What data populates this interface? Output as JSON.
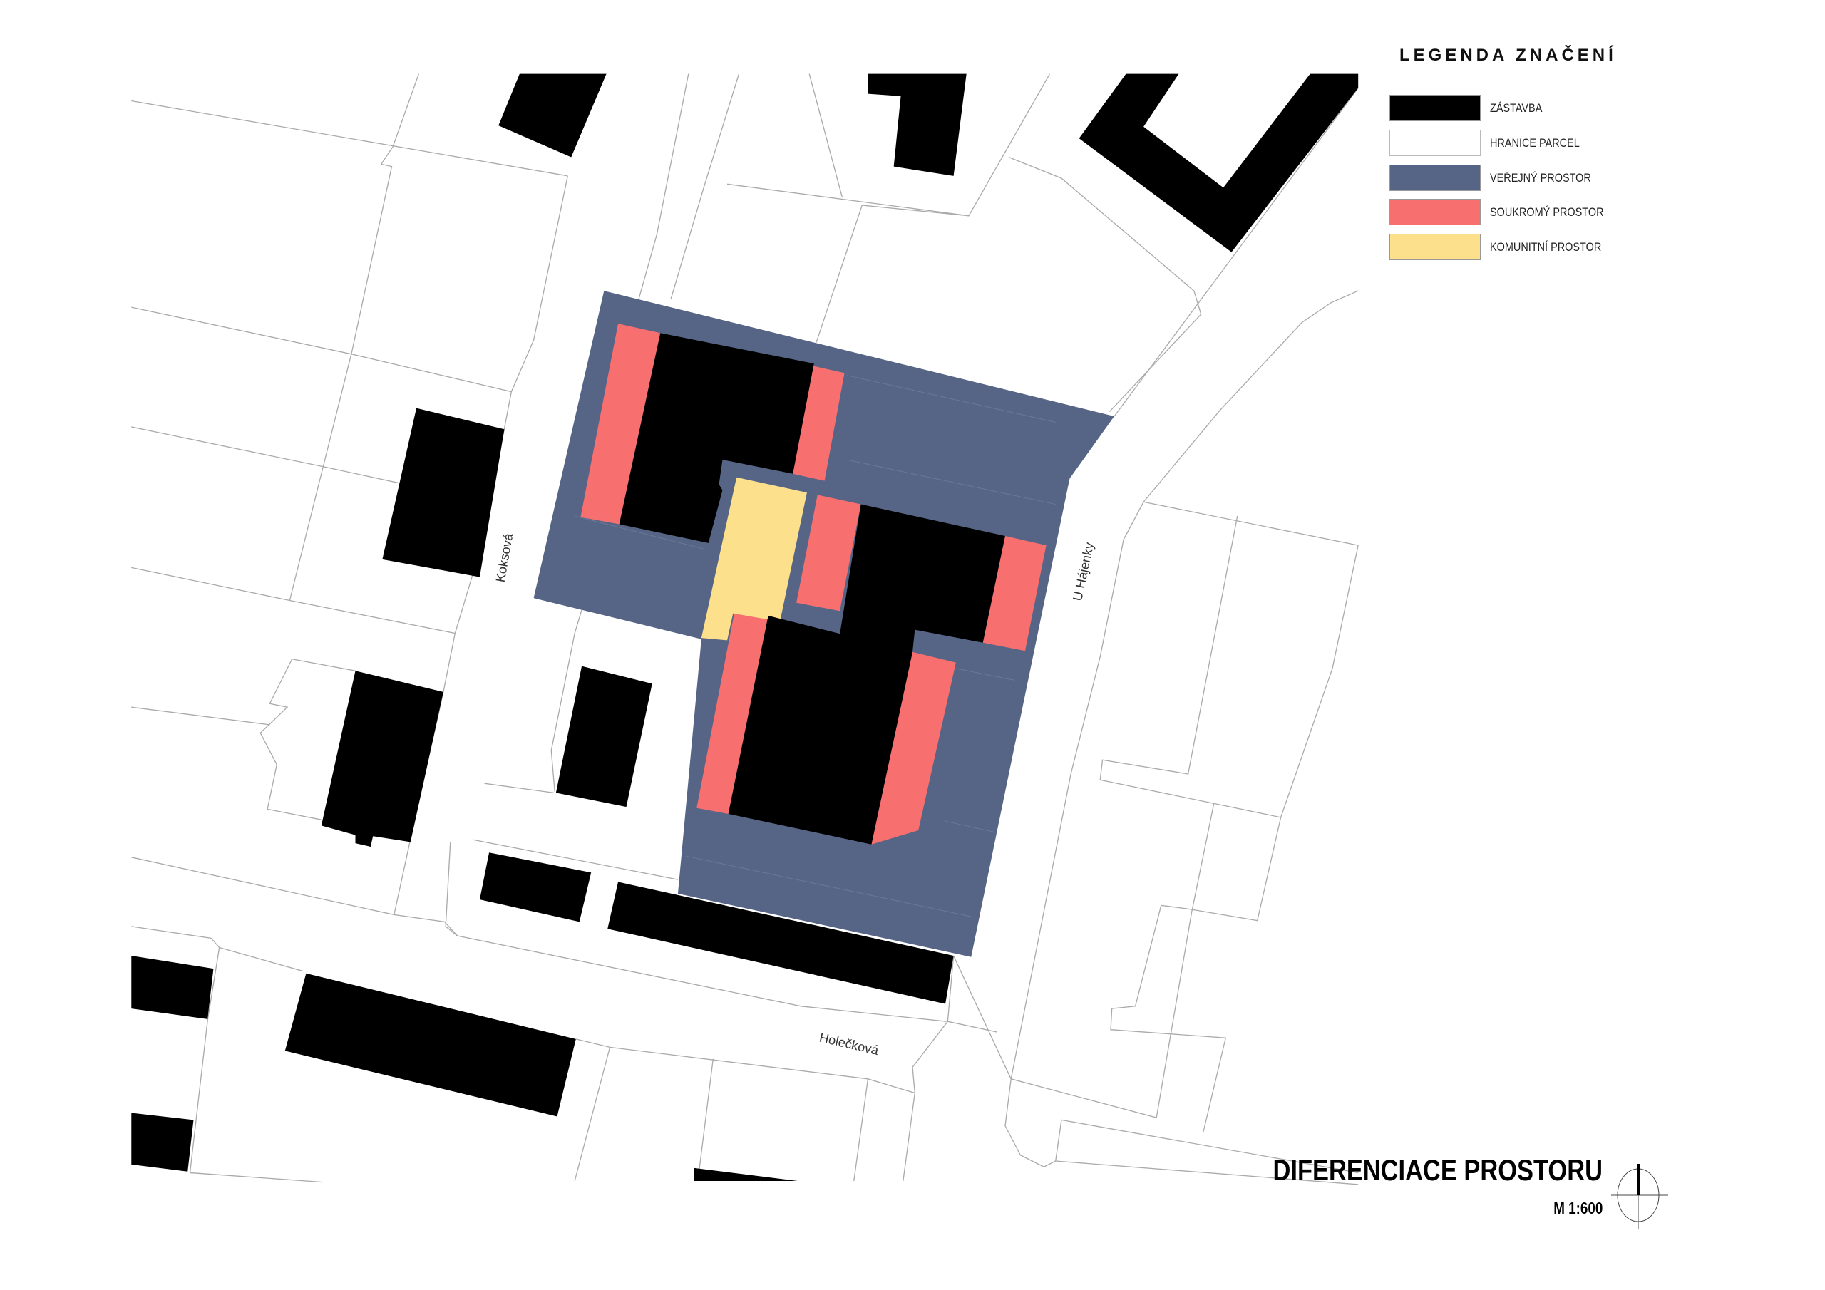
{
  "legend": {
    "title": "LEGENDA ZNAČENÍ",
    "items": [
      {
        "label": "ZÁSTAVBA",
        "color": "#000000"
      },
      {
        "label": "HRANICE PARCEL",
        "color": "#ffffff"
      },
      {
        "label": "VEŘEJNÝ PROSTOR",
        "color": "#566586"
      },
      {
        "label": "SOUKROMÝ PROSTOR",
        "color": "#f76f6f"
      },
      {
        "label": "KOMUNITNÍ PROSTOR",
        "color": "#fde08c"
      }
    ]
  },
  "streets": {
    "koksova": "Koksová",
    "u_hajenky": "U Hájenky",
    "holeckova": "Holečková"
  },
  "title": "DIFERENCIACE PROSTORU",
  "scale": "M 1:600",
  "north_arrow_icon": "north-arrow-icon"
}
